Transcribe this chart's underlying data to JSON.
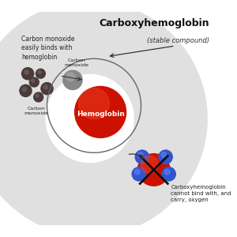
{
  "title": "Carboxyhemoglobin",
  "subtitle": "(stable compound)",
  "bg_color": "#ffffff",
  "watermark_color": "#e0e0e0",
  "left_text": "Carbon monoxide\neasily binds with\nhemoglobin",
  "co_label_inner": "Carbon\nmonoxide",
  "hemo_label": "Hemoglobin",
  "co_monoxide_label": "Carbon\nmonoxide",
  "carboxy_label": "Carboxyhemoglobin\ncannot bind with, and\ncarry, oxygen",
  "hemoglobin_color": "#cc1100",
  "hemoglobin_highlight": "#ee4422",
  "co_color": "#888888",
  "co_highlight": "#aaaaaa",
  "co_dark": "#4a3a3a",
  "oxygen_color": "#3355cc",
  "oxygen_highlight": "#6688ff",
  "circle_color": "#666666",
  "arrow_color": "#333333",
  "text_color": "#222222"
}
